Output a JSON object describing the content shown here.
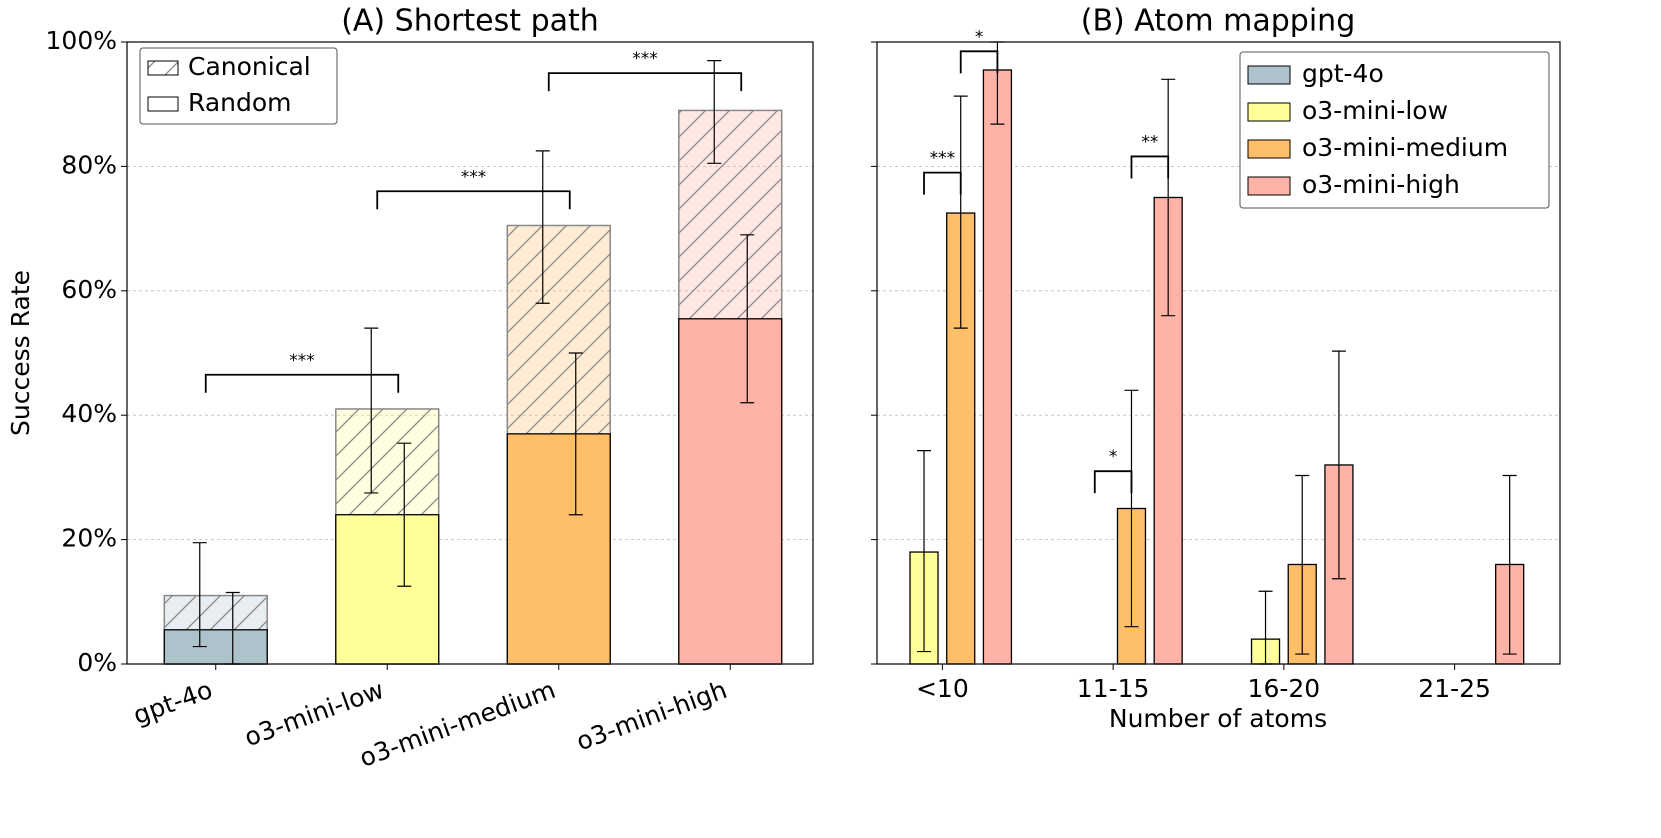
{
  "chart_data": [
    {
      "type": "overlay-bar",
      "title": "(A) Shortest path",
      "ylabel": "Success Rate",
      "categories": [
        "gpt-4o",
        "o3-mini-low",
        "o3-mini-medium",
        "o3-mini-high"
      ],
      "colors": [
        "#aec2cc",
        "#ffff99",
        "#ffbf69",
        "#ffb3a7"
      ],
      "series": [
        {
          "name": "Canonical",
          "hatch": true,
          "values": [
            11,
            41,
            70.5,
            89
          ],
          "ci_low": [
            2.8,
            27.5,
            58,
            80.5
          ],
          "ci_high": [
            19.5,
            54,
            82.5,
            97
          ]
        },
        {
          "name": "Random",
          "hatch": false,
          "values": [
            5.5,
            24,
            37,
            55.5
          ],
          "ci_low": [
            0,
            12.5,
            24,
            42
          ],
          "ci_high": [
            11.5,
            35.5,
            50,
            69
          ]
        }
      ],
      "ylim": [
        0,
        100
      ],
      "yticks": [
        {
          "value": 0,
          "label": "0%"
        },
        {
          "value": 20,
          "label": "20%"
        },
        {
          "value": 40,
          "label": "40%"
        },
        {
          "value": 60,
          "label": "60%"
        },
        {
          "value": 80,
          "label": "80%"
        },
        {
          "value": 100,
          "label": "100%"
        }
      ],
      "grid": true,
      "legend": "upper left",
      "annotations": [
        {
          "label": "***",
          "between": [
            0,
            1
          ],
          "y": 46.5
        },
        {
          "label": "***",
          "between": [
            1,
            2
          ],
          "y": 76
        },
        {
          "label": "***",
          "between": [
            2,
            3
          ],
          "y": 95
        }
      ]
    },
    {
      "type": "grouped-bar",
      "title": "(B) Atom mapping",
      "xlabel": "Number of atoms",
      "categories": [
        "<10",
        "11-15",
        "16-20",
        "21-25"
      ],
      "series": [
        {
          "name": "gpt-4o",
          "color": "#aec2cc",
          "values": [
            0,
            0,
            0,
            0
          ],
          "ci_low": [
            null,
            null,
            null,
            null
          ],
          "ci_high": [
            null,
            null,
            null,
            null
          ]
        },
        {
          "name": "o3-mini-low",
          "color": "#ffff99",
          "values": [
            18,
            0,
            4,
            0
          ],
          "ci_low": [
            2,
            null,
            0,
            null
          ],
          "ci_high": [
            34.3,
            null,
            11.7,
            null
          ]
        },
        {
          "name": "o3-mini-medium",
          "color": "#ffbf69",
          "values": [
            72.5,
            25,
            16,
            0
          ],
          "ci_low": [
            54,
            6,
            1.6,
            null
          ],
          "ci_high": [
            91.3,
            44,
            30.3,
            null
          ]
        },
        {
          "name": "o3-mini-high",
          "color": "#ffb3a7",
          "values": [
            95.5,
            75,
            32,
            16
          ],
          "ci_low": [
            86.8,
            56,
            13.7,
            1.6
          ],
          "ci_high": [
            100,
            94,
            50.3,
            30.3
          ]
        }
      ],
      "ylim": [
        0,
        100
      ],
      "yticks": [
        0,
        20,
        40,
        60,
        80,
        100
      ],
      "show_ytick_labels": false,
      "grid": true,
      "legend": "upper right",
      "annotations": [
        {
          "label": "***",
          "category": 0,
          "between": [
            1,
            2
          ],
          "y": 79
        },
        {
          "label": "*",
          "category": 0,
          "between": [
            2,
            3
          ],
          "y": 98.5
        },
        {
          "label": "*",
          "category": 1,
          "between": [
            1,
            2
          ],
          "y": 31
        },
        {
          "label": "**",
          "category": 1,
          "between": [
            2,
            3
          ],
          "y": 81.6
        }
      ]
    }
  ]
}
